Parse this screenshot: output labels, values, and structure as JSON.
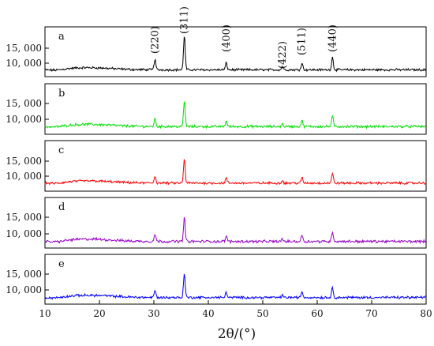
{
  "chart_data": {
    "type": "line",
    "title": "",
    "xlabel": "2θ/(°)",
    "ylabel": "",
    "xlim": [
      10,
      80
    ],
    "x_ticks": [
      10,
      20,
      30,
      40,
      50,
      60,
      70,
      80
    ],
    "y_ticks": [
      10000,
      15000
    ],
    "y_tick_labels": [
      "10, 000",
      "15, 000"
    ],
    "grid": false,
    "legend": "none",
    "peaks": [
      {
        "label": "(220)",
        "x": 30.2
      },
      {
        "label": "(311)",
        "x": 35.6
      },
      {
        "label": "(400)",
        "x": 43.3
      },
      {
        "label": "(422)",
        "x": 53.6
      },
      {
        "label": "(511)",
        "x": 57.2
      },
      {
        "label": "(440)",
        "x": 62.8
      }
    ],
    "series": [
      {
        "letter": "a",
        "color": "#000000",
        "baseline": 7800,
        "peak_heights": [
          3500,
          11500,
          2300,
          1100,
          2300,
          4200
        ]
      },
      {
        "letter": "b",
        "color": "#00e000",
        "baseline": 7700,
        "peak_heights": [
          2400,
          8200,
          1800,
          900,
          1900,
          3300
        ]
      },
      {
        "letter": "c",
        "color": "#ff0000",
        "baseline": 7700,
        "peak_heights": [
          2300,
          8000,
          1700,
          800,
          1800,
          3200
        ]
      },
      {
        "letter": "d",
        "color": "#9900cc",
        "baseline": 7700,
        "peak_heights": [
          2200,
          7300,
          1600,
          800,
          1900,
          3000
        ]
      },
      {
        "letter": "e",
        "color": "#0000ff",
        "baseline": 7600,
        "peak_heights": [
          2200,
          7800,
          1600,
          700,
          1800,
          3200
        ]
      }
    ]
  }
}
